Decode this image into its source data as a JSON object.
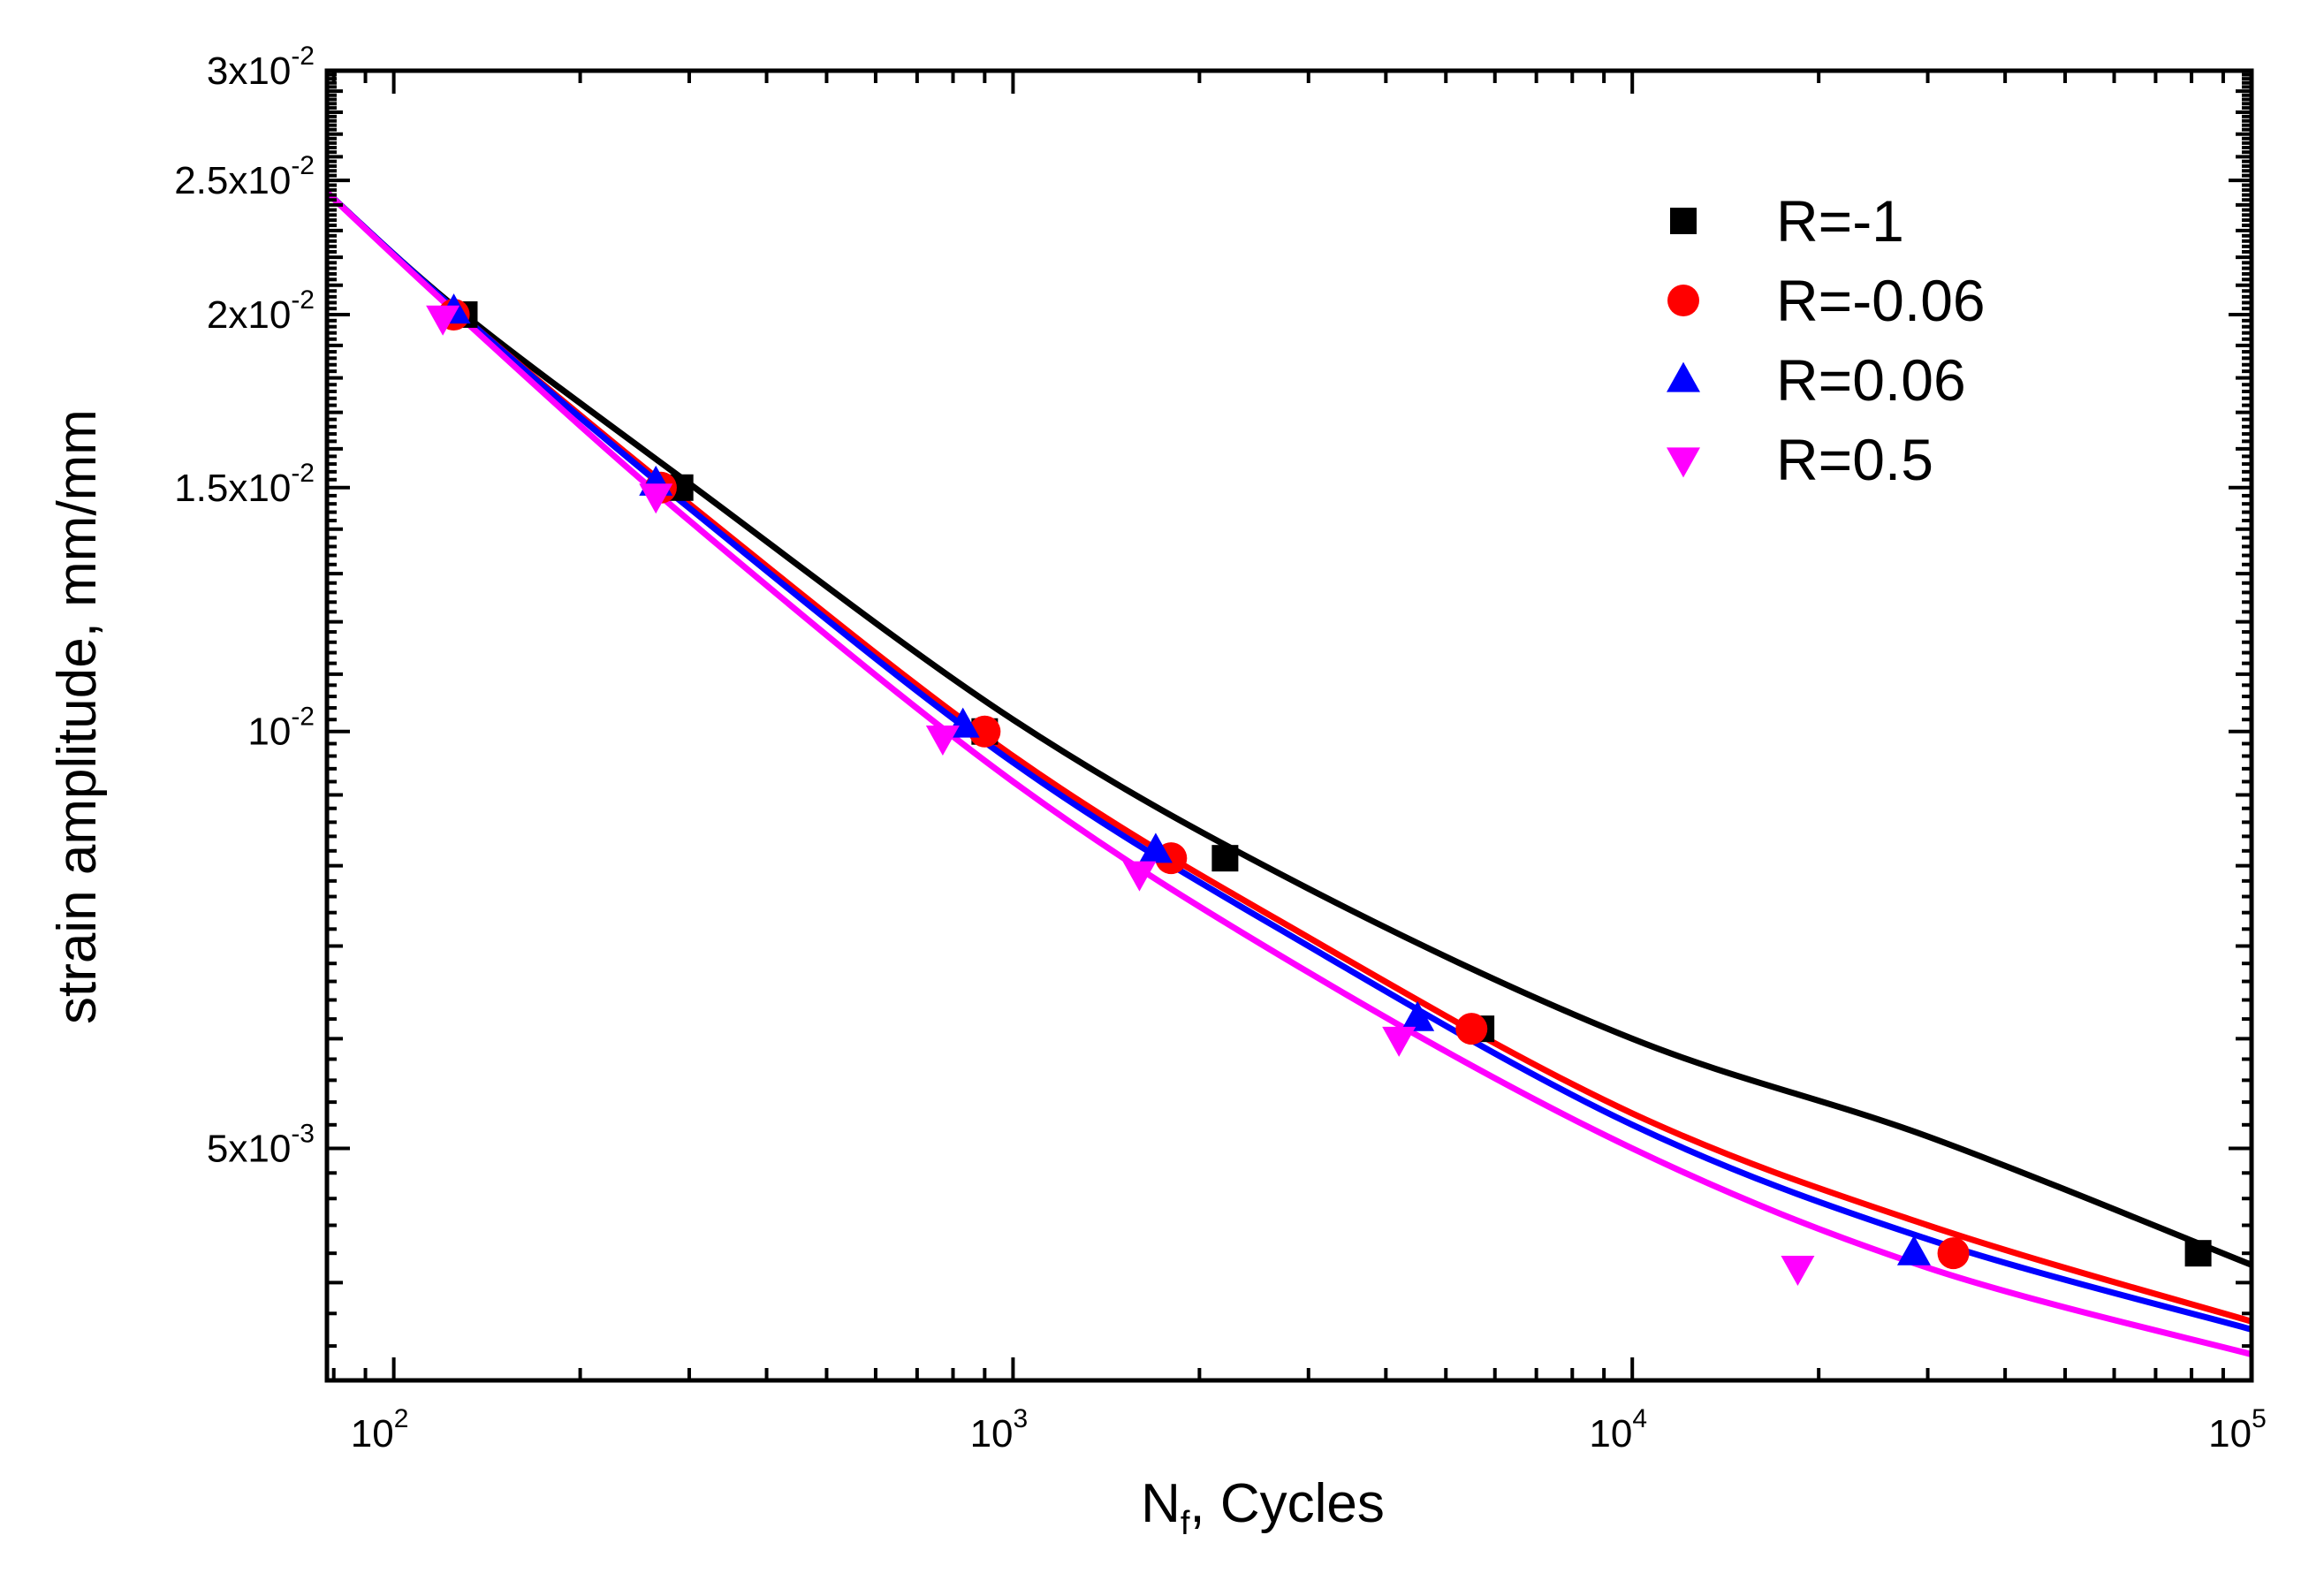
{
  "chart_data": {
    "type": "scatter",
    "title": "",
    "xscale": "log",
    "yscale": "log",
    "xlim": [
      78,
      100000
    ],
    "ylim": [
      0.0034,
      0.03
    ],
    "xlabel": {
      "main": "N",
      "sub": "f",
      "rest": ", Cycles"
    },
    "ylabel": "strain amplitude, mm/mm",
    "x_tick_labels": [
      {
        "value": 100,
        "mantissa": "10",
        "exp": "2"
      },
      {
        "value": 1000,
        "mantissa": "10",
        "exp": "3"
      },
      {
        "value": 10000,
        "mantissa": "10",
        "exp": "4"
      },
      {
        "value": 100000,
        "mantissa": "10",
        "exp": "5"
      }
    ],
    "y_tick_labels": [
      {
        "value": 0.005,
        "mantissa": "5x10",
        "exp": "-3"
      },
      {
        "value": 0.01,
        "mantissa": "10",
        "exp": "-2"
      },
      {
        "value": 0.015,
        "mantissa": "1.5x10",
        "exp": "-2"
      },
      {
        "value": 0.02,
        "mantissa": "2x10",
        "exp": "-2"
      },
      {
        "value": 0.025,
        "mantissa": "2.5x10",
        "exp": "-2"
      },
      {
        "value": 0.03,
        "mantissa": "3x10",
        "exp": "-2"
      }
    ],
    "legend_position": "top-right",
    "series": [
      {
        "name": "R=-1",
        "color": "#000000",
        "marker": "square",
        "points": [
          [
            130,
            0.02
          ],
          [
            290,
            0.015
          ],
          [
            900,
            0.01
          ],
          [
            2200,
            0.0081
          ],
          [
            5700,
            0.0061
          ],
          [
            82000,
            0.0042
          ]
        ],
        "fit_curve": [
          [
            78,
            0.0245
          ],
          [
            130,
            0.02
          ],
          [
            300,
            0.0151
          ],
          [
            1000,
            0.0102
          ],
          [
            3000,
            0.0077
          ],
          [
            10000,
            0.006
          ],
          [
            30000,
            0.0051
          ],
          [
            100000,
            0.00412
          ]
        ]
      },
      {
        "name": "R=-0.06",
        "color": "#ff0000",
        "marker": "circle",
        "points": [
          [
            125,
            0.02
          ],
          [
            270,
            0.015
          ],
          [
            900,
            0.01
          ],
          [
            1800,
            0.0081
          ],
          [
            5500,
            0.0061
          ],
          [
            33000,
            0.0042
          ]
        ],
        "fit_curve": [
          [
            78,
            0.0245
          ],
          [
            130,
            0.0199
          ],
          [
            300,
            0.0146
          ],
          [
            1000,
            0.0096
          ],
          [
            3000,
            0.0071
          ],
          [
            10000,
            0.0053
          ],
          [
            30000,
            0.0044
          ],
          [
            100000,
            0.00375
          ]
        ]
      },
      {
        "name": "R=0.06",
        "color": "#0000ff",
        "marker": "triangle-up",
        "points": [
          [
            125,
            0.0201
          ],
          [
            265,
            0.0151
          ],
          [
            830,
            0.0101
          ],
          [
            1700,
            0.0082
          ],
          [
            4500,
            0.0062
          ],
          [
            28500,
            0.0042
          ]
        ],
        "fit_curve": [
          [
            78,
            0.0245
          ],
          [
            130,
            0.0199
          ],
          [
            300,
            0.0145
          ],
          [
            1000,
            0.0095
          ],
          [
            3000,
            0.007
          ],
          [
            10000,
            0.0052
          ],
          [
            30000,
            0.0043
          ],
          [
            100000,
            0.0037
          ]
        ]
      },
      {
        "name": "R=0.5",
        "color": "#ff00ff",
        "marker": "triangle-down",
        "points": [
          [
            120,
            0.0199
          ],
          [
            265,
            0.0148
          ],
          [
            770,
            0.0099
          ],
          [
            1600,
            0.0079
          ],
          [
            4200,
            0.006
          ],
          [
            18500,
            0.0041
          ]
        ],
        "fit_curve": [
          [
            78,
            0.0245
          ],
          [
            130,
            0.0198
          ],
          [
            300,
            0.0142
          ],
          [
            1000,
            0.0092
          ],
          [
            3000,
            0.0067
          ],
          [
            10000,
            0.005
          ],
          [
            30000,
            0.0041
          ],
          [
            100000,
            0.00355
          ]
        ]
      }
    ]
  }
}
